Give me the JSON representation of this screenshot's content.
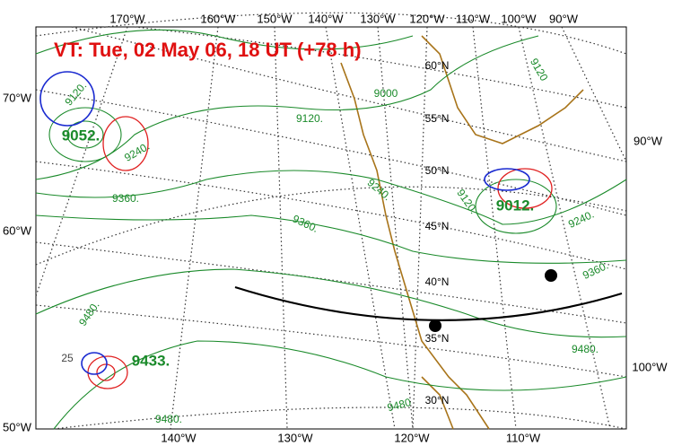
{
  "map": {
    "title": "VT:  Tue, 02 May 06, 18 UT (+78 h)",
    "top_lon_labels": [
      "170°W",
      "160°W",
      "150°W",
      "140°W",
      "130°W",
      "120°W",
      "110°W",
      "100°W",
      "90°W"
    ],
    "left_lon_labels": [
      "70°W",
      "60°W",
      "50°W"
    ],
    "right_lon_labels": [
      "90°W",
      "100°W"
    ],
    "bottom_lon_labels": [
      "140°W",
      "130°W",
      "120°W",
      "110°W"
    ],
    "lat_labels": [
      "60°N",
      "55°N",
      "50°N",
      "45°N",
      "40°N",
      "35°N",
      "30°N"
    ],
    "contour_labels": [
      "9120.",
      "9240.",
      "9120.",
      "9360.",
      "9360.",
      "9240.",
      "9000",
      "9120.",
      "9240.",
      "9360.",
      "9480.",
      "9480.",
      "9480",
      "9480.",
      "9120",
      "25"
    ],
    "centers": [
      "9052.",
      "9012.",
      "9433."
    ]
  }
}
